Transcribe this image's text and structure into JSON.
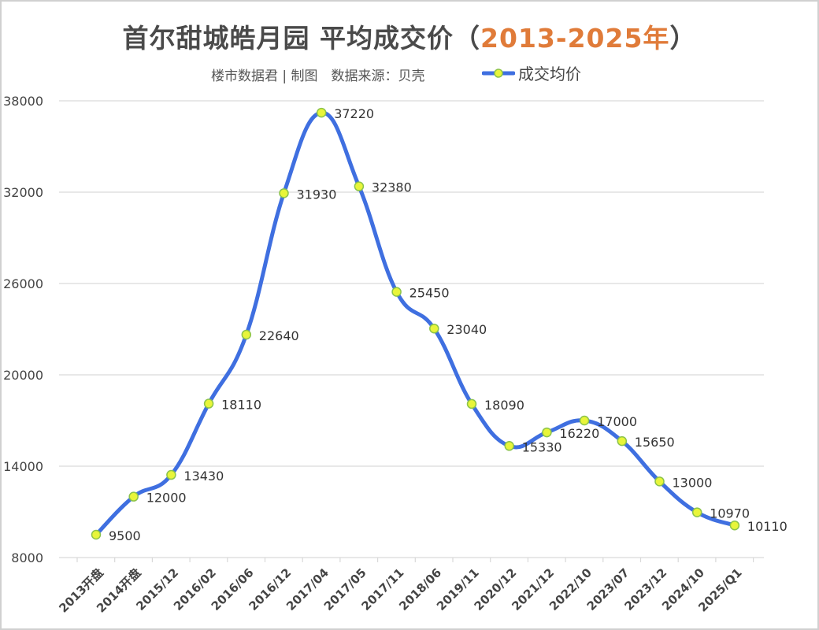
{
  "header": {
    "title_main": "首尔甜城皓月园 平均成交价（",
    "title_accent": "2013-2025年",
    "title_end": "）",
    "subtitle": "楼市数据君 | 制图　数据来源：贝壳"
  },
  "legend": {
    "label": "成交均价"
  },
  "colors": {
    "line": "#3f6fe0",
    "marker_fill": "#e8f53a",
    "marker_stroke": "#8bc34a",
    "grid": "#d9d9d9",
    "accent": "#e07b39"
  },
  "chart_data": {
    "type": "line",
    "title": "首尔甜城皓月园 平均成交价（2013-2025年）",
    "subtitle": "楼市数据君 | 制图 数据来源：贝壳",
    "xlabel": "",
    "ylabel": "",
    "ylim": [
      8000,
      38000
    ],
    "yticks": [
      8000,
      14000,
      20000,
      26000,
      32000,
      38000
    ],
    "grid": true,
    "legend_position": "top",
    "smooth": true,
    "categories": [
      "2013开盘",
      "2014开盘",
      "2015/12",
      "2016/02",
      "2016/06",
      "2016/12",
      "2017/04",
      "2017/05",
      "2017/11",
      "2018/06",
      "2019/11",
      "2020/12",
      "2021/12",
      "2022/10",
      "2023/07",
      "2023/12",
      "2024/10",
      "2025/Q1"
    ],
    "series": [
      {
        "name": "成交均价",
        "values": [
          9500,
          12000,
          13430,
          18110,
          22640,
          31930,
          37220,
          32380,
          25450,
          23040,
          18090,
          15330,
          16220,
          17000,
          15650,
          13000,
          10970,
          10110
        ]
      }
    ]
  }
}
